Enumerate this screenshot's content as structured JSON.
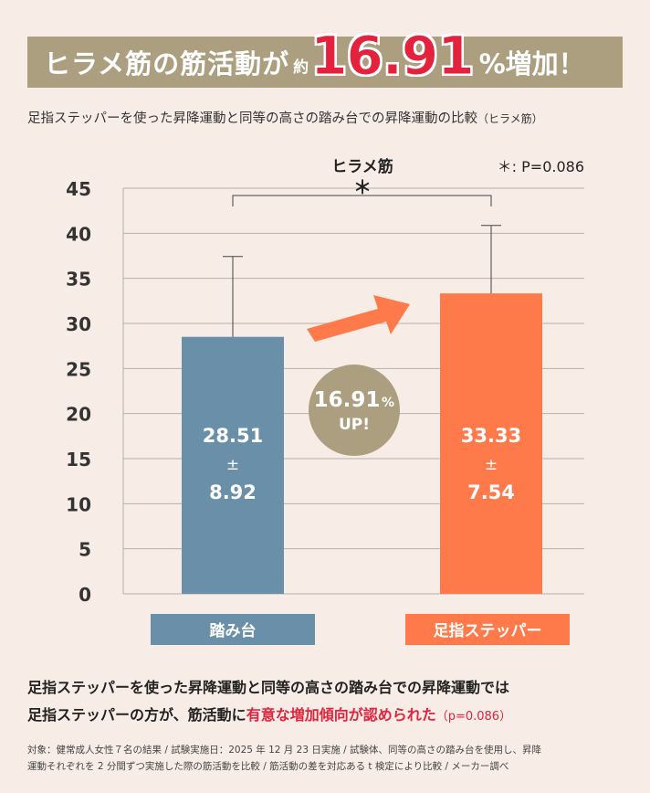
{
  "headline": {
    "part1": "ヒラメ筋の筋活動が",
    "part2": "約",
    "number": "16.91",
    "part3": "%増加！"
  },
  "subtitle": {
    "main": "足指ステッパーを使った昇降運動と同等の高さの踏み台での昇降運動の比較",
    "paren": "（ヒラメ筋）"
  },
  "chart_data": {
    "type": "bar",
    "title": "ヒラメ筋",
    "annotation": "＊: P=0.086",
    "significance_marker": "＊",
    "categories": [
      "踏み台",
      "足指ステッパー"
    ],
    "values": [
      28.51,
      33.33
    ],
    "errors": [
      8.92,
      7.54
    ],
    "value_labels": [
      {
        "value": "28.51",
        "pm": "±",
        "err": "8.92"
      },
      {
        "value": "33.33",
        "pm": "±",
        "err": "7.54"
      }
    ],
    "colors": [
      "#6a8fa8",
      "#ff7a4a"
    ],
    "ylim": [
      0,
      45
    ],
    "yticks": [
      0,
      5,
      10,
      15,
      20,
      25,
      30,
      35,
      40,
      45
    ],
    "grid": true,
    "badge": {
      "number": "16.91",
      "unit": "%",
      "text": "UP!"
    }
  },
  "footer": {
    "line1": "足指ステッパーを使った昇降運動と同等の高さの踏み台での昇降運動では",
    "line2a": "足指ステッパーの方が、筋活動に",
    "line2b": "有意な増加傾向が認められた",
    "line2c": "（p=0.086）"
  },
  "note": {
    "line1": "対象：健常成人女性７名の結果 / 試験実施日：2025 年 12 月 23 日実施 / 試験体、同等の高さの踏み台を使用し、昇降",
    "line2": "運動それぞれを 2 分間ずつ実施した際の筋活動を比較 / 筋活動の差を対応ある t 検定により比較 / メーカー調べ"
  }
}
